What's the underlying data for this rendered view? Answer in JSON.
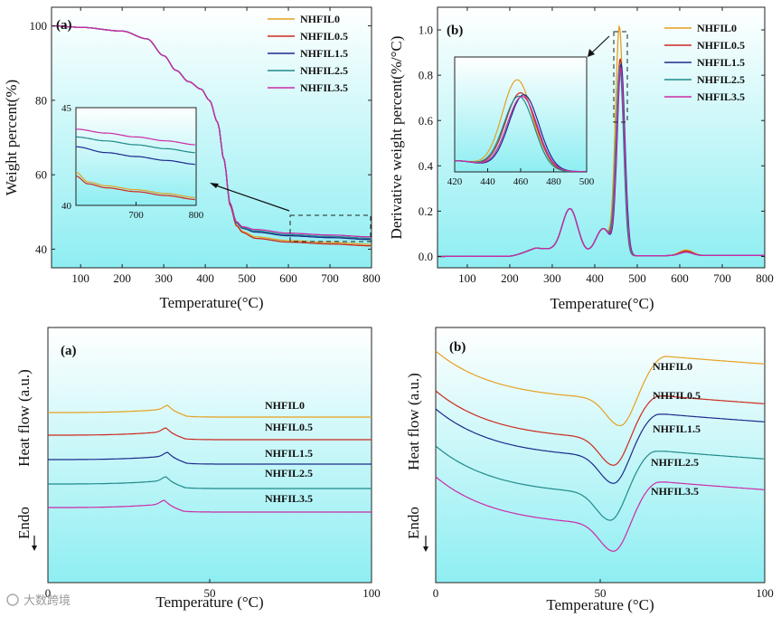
{
  "colors": {
    "NHFIL0": "#e6a020",
    "NHFIL0.5": "#cc2a1e",
    "NHFIL1.5": "#1c2a8c",
    "NHFIL2.5": "#1f8a8a",
    "NHFIL3.5": "#cc2aa8",
    "bg_top": "#ffffff",
    "bg_bottom": "#8eeef2"
  },
  "watermark": "大数跨境",
  "chart_data": [
    {
      "id": "tga",
      "type": "line",
      "panel_label": "(a)",
      "xlabel": "Temperature(°C)",
      "ylabel": "Weight percent(%)",
      "xlim": [
        30,
        800
      ],
      "ylim": [
        35,
        105
      ],
      "xticks": [
        100,
        200,
        300,
        400,
        500,
        600,
        700,
        800
      ],
      "yticks": [
        40,
        60,
        80,
        100
      ],
      "legend": [
        "NHFIL0",
        "NHFIL0.5",
        "NHFIL1.5",
        "NHFIL2.5",
        "NHFIL3.5"
      ],
      "base_curve": {
        "x": [
          30,
          100,
          200,
          260,
          300,
          330,
          360,
          390,
          410,
          430,
          445,
          460,
          475,
          490,
          520,
          600,
          700,
          800
        ],
        "y": [
          100,
          99.6,
          98.6,
          96.5,
          92,
          88,
          85,
          83,
          80,
          74,
          64,
          52,
          47,
          45.5,
          44.5,
          43.5,
          43,
          42.5
        ]
      },
      "residue_offsets": [
        -1.2,
        -1.6,
        0.1,
        0.4,
        0.8
      ],
      "inset": {
        "xlim": [
          600,
          800
        ],
        "ylim": [
          40,
          45
        ],
        "xticks": [
          700,
          800
        ],
        "yticks": [
          40,
          45
        ],
        "series": [
          {
            "name": "NHFIL0",
            "x": [
              600,
              620,
              650,
              700,
              750,
              800
            ],
            "y": [
              41.7,
              41.2,
              41.0,
              40.8,
              40.6,
              40.4
            ]
          },
          {
            "name": "NHFIL0.5",
            "x": [
              600,
              620,
              650,
              700,
              750,
              800
            ],
            "y": [
              41.5,
              41.1,
              40.9,
              40.7,
              40.5,
              40.3
            ]
          },
          {
            "name": "NHFIL1.5",
            "x": [
              600,
              650,
              700,
              750,
              800
            ],
            "y": [
              43.0,
              42.7,
              42.5,
              42.3,
              42.1
            ]
          },
          {
            "name": "NHFIL2.5",
            "x": [
              600,
              650,
              700,
              750,
              800
            ],
            "y": [
              43.5,
              43.3,
              43.1,
              42.9,
              42.7
            ]
          },
          {
            "name": "NHFIL3.5",
            "x": [
              600,
              650,
              700,
              750,
              800
            ],
            "y": [
              43.9,
              43.7,
              43.5,
              43.3,
              43.1
            ]
          }
        ]
      }
    },
    {
      "id": "dtg",
      "type": "line",
      "panel_label": "(b)",
      "xlabel": "Temperature(°C)",
      "ylabel": "Derivative weight percent(%/°C)",
      "xlim": [
        30,
        800
      ],
      "ylim": [
        -0.05,
        1.1
      ],
      "xticks": [
        100,
        200,
        300,
        400,
        500,
        600,
        700,
        800
      ],
      "yticks": [
        0.0,
        0.2,
        0.4,
        0.6,
        0.8,
        1.0
      ],
      "legend": [
        "NHFIL0",
        "NHFIL0.5",
        "NHFIL1.5",
        "NHFIL2.5",
        "NHFIL3.5"
      ],
      "series": [
        {
          "name": "NHFIL0",
          "peak_x": 458,
          "peak_y": 1.0,
          "bump_y": 0.025
        },
        {
          "name": "NHFIL0.5",
          "peak_x": 460,
          "peak_y": 0.86,
          "bump_y": 0.02
        },
        {
          "name": "NHFIL1.5",
          "peak_x": 462,
          "peak_y": 0.84,
          "bump_y": 0.015
        },
        {
          "name": "NHFIL2.5",
          "peak_x": 459,
          "peak_y": 0.82,
          "bump_y": 0.015
        },
        {
          "name": "NHFIL3.5",
          "peak_x": 461,
          "peak_y": 0.82,
          "bump_y": 0.015
        }
      ],
      "inset": {
        "xlim": [
          420,
          500
        ],
        "ylim": [
          0.0,
          1.0
        ],
        "xticks": [
          420,
          440,
          460,
          480,
          500
        ]
      }
    },
    {
      "id": "dsc_heating",
      "type": "line",
      "panel_label": "(a)",
      "xlabel": "Temperature (°C)",
      "ylabel": "Heat flow (a.u.)",
      "endo_label": "Endo",
      "xlim": [
        0,
        100
      ],
      "xticks": [
        0,
        50,
        100
      ],
      "series": [
        {
          "name": "NHFIL0",
          "label": "NHFIL0",
          "peak_x": 37,
          "offset": 0
        },
        {
          "name": "NHFIL0.5",
          "label": "NHFIL0.5",
          "peak_x": 36.5,
          "offset": 1
        },
        {
          "name": "NHFIL1.5",
          "label": "NHFIL1.5",
          "peak_x": 37,
          "offset": 2
        },
        {
          "name": "NHFIL2.5",
          "label": "NHFIL2.5",
          "peak_x": 36.5,
          "offset": 3
        },
        {
          "name": "NHFIL3.5",
          "label": "NHFIL3.5",
          "peak_x": 36,
          "offset": 4
        }
      ]
    },
    {
      "id": "dsc_cooling",
      "type": "line",
      "panel_label": "(b)",
      "xlabel": "Temperature (°C)",
      "ylabel": "Heat flow (a.u.)",
      "endo_label": "Endo",
      "xlim": [
        0,
        100
      ],
      "xticks": [
        0,
        50,
        100
      ],
      "series": [
        {
          "name": "NHFIL0",
          "label": "NHFIL0",
          "valley_x": 56,
          "offset": 0
        },
        {
          "name": "NHFIL0.5",
          "label": "NHFIL0.5",
          "valley_x": 54,
          "offset": 1
        },
        {
          "name": "NHFIL1.5",
          "label": "NHFIL1.5",
          "valley_x": 54,
          "offset": 2
        },
        {
          "name": "NHFIL2.5",
          "label": "NHFIL2.5",
          "valley_x": 53,
          "offset": 3
        },
        {
          "name": "NHFIL3.5",
          "label": "NHFIL3.5",
          "valley_x": 54,
          "offset": 4
        }
      ]
    }
  ]
}
